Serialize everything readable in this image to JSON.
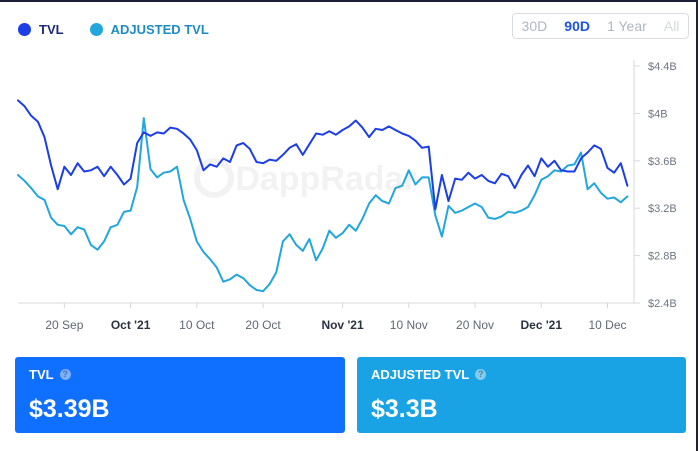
{
  "legend": {
    "tvl_label": "TVL",
    "adjusted_label": "ADJUSTED TVL"
  },
  "range_buttons": [
    "30D",
    "90D",
    "1 Year",
    "All"
  ],
  "range_active": "90D",
  "colors": {
    "tvl": "#1c3ee6",
    "adjusted": "#22a6dc",
    "card_tvl": "#0f6fff",
    "card_adjusted": "#1aa3e4"
  },
  "watermark": "DappRadar",
  "cards": {
    "tvl": {
      "label": "TVL",
      "value": "$3.39B"
    },
    "adjusted": {
      "label": "ADJUSTED TVL",
      "value": "$3.3B"
    }
  },
  "chart_data": {
    "type": "line",
    "title": "",
    "xlabel": "",
    "ylabel": "",
    "x_ticks": [
      {
        "label": "20 Sep",
        "day": 7,
        "bold": false
      },
      {
        "label": "Oct '21",
        "day": 17,
        "bold": true
      },
      {
        "label": "10 Oct",
        "day": 27,
        "bold": false
      },
      {
        "label": "20 Oct",
        "day": 37,
        "bold": false
      },
      {
        "label": "Nov '21",
        "day": 49,
        "bold": true
      },
      {
        "label": "10 Nov",
        "day": 59,
        "bold": false
      },
      {
        "label": "20 Nov",
        "day": 69,
        "bold": false
      },
      {
        "label": "Dec '21",
        "day": 79,
        "bold": true
      },
      {
        "label": "10 Dec",
        "day": 89,
        "bold": false
      }
    ],
    "y_ticks": [
      "$2.4B",
      "$2.8B",
      "$3.2B",
      "$3.6B",
      "$4B",
      "$4.4B"
    ],
    "y_tick_values": [
      2.4,
      2.8,
      3.2,
      3.6,
      4.0,
      4.4
    ],
    "ylim": [
      2.4,
      4.4
    ],
    "xlim": [
      0,
      93
    ],
    "series": [
      {
        "name": "TVL",
        "unit": "$B",
        "values": [
          [
            0,
            4.11
          ],
          [
            1,
            4.06
          ],
          [
            2,
            3.98
          ],
          [
            3,
            3.93
          ],
          [
            4,
            3.8
          ],
          [
            5,
            3.56
          ],
          [
            6,
            3.36
          ],
          [
            7,
            3.55
          ],
          [
            8,
            3.48
          ],
          [
            9,
            3.58
          ],
          [
            10,
            3.51
          ],
          [
            11,
            3.52
          ],
          [
            12,
            3.55
          ],
          [
            13,
            3.47
          ],
          [
            14,
            3.55
          ],
          [
            15,
            3.48
          ],
          [
            16,
            3.4
          ],
          [
            17,
            3.45
          ],
          [
            18,
            3.75
          ],
          [
            19,
            3.84
          ],
          [
            20,
            3.81
          ],
          [
            21,
            3.84
          ],
          [
            22,
            3.83
          ],
          [
            23,
            3.88
          ],
          [
            24,
            3.87
          ],
          [
            25,
            3.83
          ],
          [
            26,
            3.78
          ],
          [
            27,
            3.69
          ],
          [
            28,
            3.52
          ],
          [
            29,
            3.57
          ],
          [
            30,
            3.55
          ],
          [
            31,
            3.62
          ],
          [
            32,
            3.59
          ],
          [
            33,
            3.73
          ],
          [
            34,
            3.75
          ],
          [
            35,
            3.7
          ],
          [
            36,
            3.59
          ],
          [
            37,
            3.58
          ],
          [
            38,
            3.61
          ],
          [
            39,
            3.6
          ],
          [
            40,
            3.65
          ],
          [
            41,
            3.71
          ],
          [
            42,
            3.74
          ],
          [
            43,
            3.65
          ],
          [
            44,
            3.74
          ],
          [
            45,
            3.83
          ],
          [
            46,
            3.82
          ],
          [
            47,
            3.85
          ],
          [
            48,
            3.82
          ],
          [
            49,
            3.86
          ],
          [
            50,
            3.89
          ],
          [
            51,
            3.94
          ],
          [
            52,
            3.88
          ],
          [
            53,
            3.8
          ],
          [
            54,
            3.87
          ],
          [
            55,
            3.86
          ],
          [
            56,
            3.89
          ],
          [
            57,
            3.86
          ],
          [
            58,
            3.83
          ],
          [
            59,
            3.81
          ],
          [
            60,
            3.77
          ],
          [
            61,
            3.71
          ],
          [
            62,
            3.72
          ],
          [
            63,
            3.19
          ],
          [
            64,
            3.48
          ],
          [
            65,
            3.26
          ],
          [
            66,
            3.45
          ],
          [
            67,
            3.44
          ],
          [
            68,
            3.5
          ],
          [
            69,
            3.45
          ],
          [
            70,
            3.48
          ],
          [
            71,
            3.43
          ],
          [
            72,
            3.41
          ],
          [
            73,
            3.49
          ],
          [
            74,
            3.47
          ],
          [
            75,
            3.37
          ],
          [
            76,
            3.48
          ],
          [
            77,
            3.56
          ],
          [
            78,
            3.47
          ],
          [
            79,
            3.62
          ],
          [
            80,
            3.55
          ],
          [
            81,
            3.6
          ],
          [
            82,
            3.52
          ],
          [
            83,
            3.51
          ],
          [
            84,
            3.51
          ],
          [
            85,
            3.62
          ],
          [
            86,
            3.67
          ],
          [
            87,
            3.73
          ],
          [
            88,
            3.7
          ],
          [
            89,
            3.54
          ],
          [
            90,
            3.5
          ],
          [
            91,
            3.58
          ],
          [
            92,
            3.39
          ]
        ]
      },
      {
        "name": "ADJUSTED TVL",
        "unit": "$B",
        "values": [
          [
            0,
            3.48
          ],
          [
            1,
            3.43
          ],
          [
            2,
            3.37
          ],
          [
            3,
            3.3
          ],
          [
            4,
            3.27
          ],
          [
            5,
            3.12
          ],
          [
            6,
            3.06
          ],
          [
            7,
            3.05
          ],
          [
            8,
            2.98
          ],
          [
            9,
            3.04
          ],
          [
            10,
            3.02
          ],
          [
            11,
            2.89
          ],
          [
            12,
            2.85
          ],
          [
            13,
            2.92
          ],
          [
            14,
            3.04
          ],
          [
            15,
            3.06
          ],
          [
            16,
            3.17
          ],
          [
            17,
            3.18
          ],
          [
            18,
            3.38
          ],
          [
            19,
            3.96
          ],
          [
            20,
            3.53
          ],
          [
            21,
            3.46
          ],
          [
            22,
            3.5
          ],
          [
            23,
            3.51
          ],
          [
            24,
            3.55
          ],
          [
            25,
            3.27
          ],
          [
            26,
            3.11
          ],
          [
            27,
            2.92
          ],
          [
            28,
            2.83
          ],
          [
            29,
            2.77
          ],
          [
            30,
            2.7
          ],
          [
            31,
            2.58
          ],
          [
            32,
            2.6
          ],
          [
            33,
            2.64
          ],
          [
            34,
            2.61
          ],
          [
            35,
            2.55
          ],
          [
            36,
            2.51
          ],
          [
            37,
            2.5
          ],
          [
            38,
            2.56
          ],
          [
            39,
            2.66
          ],
          [
            40,
            2.92
          ],
          [
            41,
            2.98
          ],
          [
            42,
            2.89
          ],
          [
            43,
            2.84
          ],
          [
            44,
            2.94
          ],
          [
            45,
            2.76
          ],
          [
            46,
            2.86
          ],
          [
            47,
            3.01
          ],
          [
            48,
            2.95
          ],
          [
            49,
            2.99
          ],
          [
            50,
            3.06
          ],
          [
            51,
            3.01
          ],
          [
            52,
            3.11
          ],
          [
            53,
            3.24
          ],
          [
            54,
            3.31
          ],
          [
            55,
            3.26
          ],
          [
            56,
            3.24
          ],
          [
            57,
            3.37
          ],
          [
            58,
            3.39
          ],
          [
            59,
            3.52
          ],
          [
            60,
            3.4
          ],
          [
            61,
            3.46
          ],
          [
            62,
            3.46
          ],
          [
            63,
            3.14
          ],
          [
            64,
            2.96
          ],
          [
            65,
            3.22
          ],
          [
            66,
            3.16
          ],
          [
            67,
            3.18
          ],
          [
            68,
            3.21
          ],
          [
            69,
            3.24
          ],
          [
            70,
            3.21
          ],
          [
            71,
            3.12
          ],
          [
            72,
            3.11
          ],
          [
            73,
            3.13
          ],
          [
            74,
            3.17
          ],
          [
            75,
            3.16
          ],
          [
            76,
            3.18
          ],
          [
            77,
            3.21
          ],
          [
            78,
            3.31
          ],
          [
            79,
            3.44
          ],
          [
            80,
            3.47
          ],
          [
            81,
            3.52
          ],
          [
            82,
            3.51
          ],
          [
            83,
            3.56
          ],
          [
            84,
            3.57
          ],
          [
            85,
            3.67
          ],
          [
            86,
            3.36
          ],
          [
            87,
            3.41
          ],
          [
            88,
            3.33
          ],
          [
            89,
            3.28
          ],
          [
            90,
            3.29
          ],
          [
            91,
            3.25
          ],
          [
            92,
            3.3
          ]
        ]
      }
    ],
    "grid": {
      "horizontal": false,
      "vertical": false
    },
    "legend_position": "top-left"
  }
}
